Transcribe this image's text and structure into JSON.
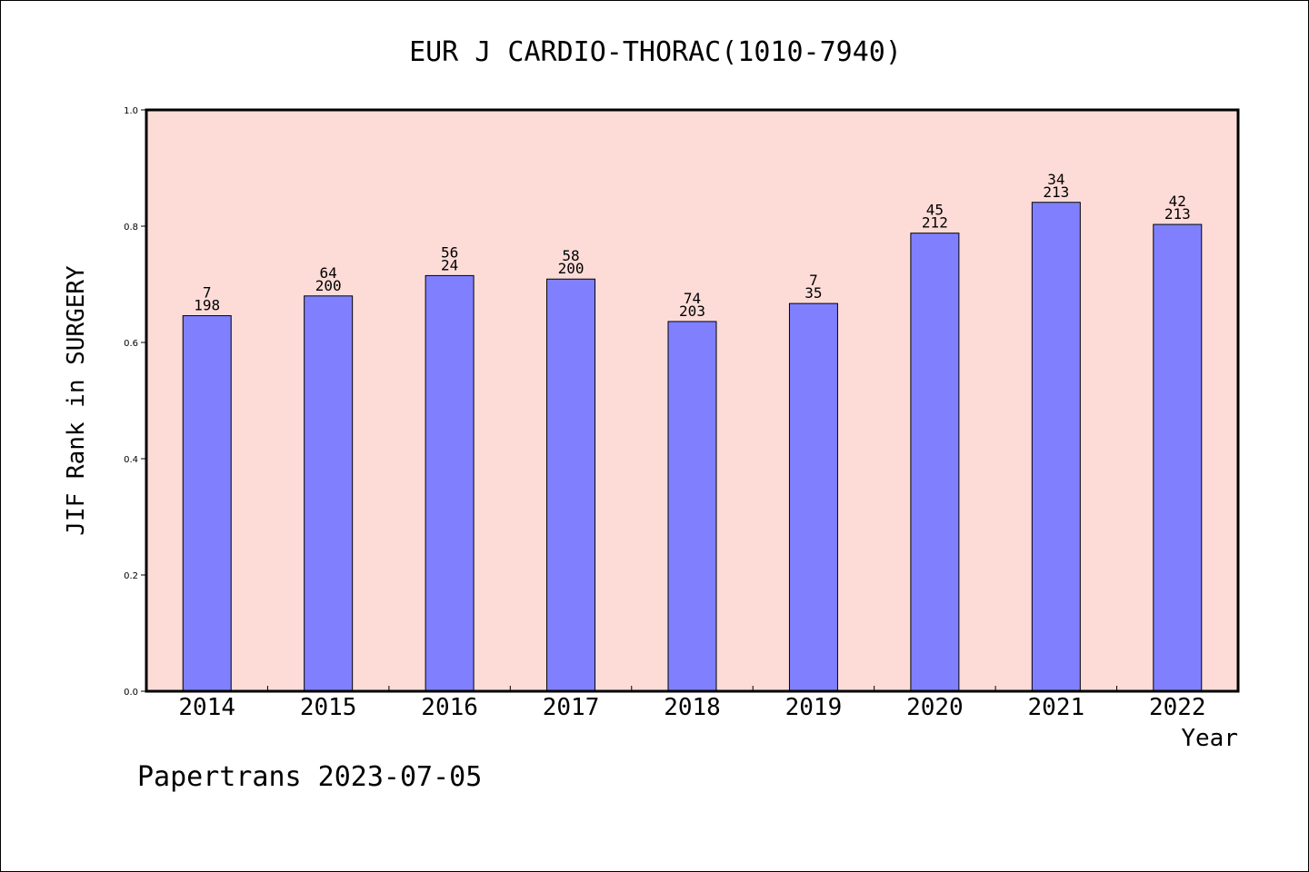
{
  "chart_data": {
    "type": "bar",
    "title": "EUR J CARDIO-THORAC(1010-7940)",
    "xlabel": "Year",
    "ylabel": "JIF Rank in SURGERY",
    "categories": [
      "2014",
      "2015",
      "2016",
      "2017",
      "2018",
      "2019",
      "2020",
      "2021",
      "2022"
    ],
    "values": [
      0.646,
      0.68,
      0.715,
      0.709,
      0.636,
      0.667,
      0.788,
      0.841,
      0.803
    ],
    "rank_labels": [
      "7",
      "64",
      "56",
      "58",
      "74",
      "7",
      "45",
      "34",
      "42"
    ],
    "total_labels": [
      "198",
      "200",
      "24",
      "200",
      "203",
      "35",
      "212",
      "213",
      "213"
    ],
    "ylim": [
      0,
      1.0
    ],
    "yticks": [
      "0.0",
      "0.2",
      "0.4",
      "0.6",
      "0.8",
      "1.0"
    ],
    "grid": false,
    "legend": "none",
    "colors": {
      "plot_background": "#fddcd8",
      "bar_fill": "#8080ff",
      "bar_stroke": "#000000"
    }
  },
  "footer": "Papertrans 2023-07-05"
}
